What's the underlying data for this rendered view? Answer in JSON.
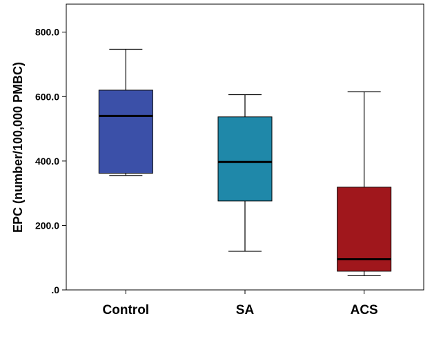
{
  "chart_data": {
    "type": "boxplot",
    "title": "",
    "xlabel": "",
    "ylabel": "EPC (number/100,000 PMBC)",
    "ylim": [
      0,
      887
    ],
    "yticks": [
      0,
      200,
      400,
      600,
      800
    ],
    "ytick_labels": [
      ".0",
      "200.0",
      "400.0",
      "600.0",
      "800.0"
    ],
    "grid": false,
    "legend": "none",
    "categories": [
      "Control",
      "SA",
      "ACS"
    ],
    "boxes": [
      {
        "name": "Control",
        "whisker_low": 355,
        "q1": 362,
        "median": 540,
        "q3": 620,
        "whisker_high": 747,
        "color": "#3b50a8"
      },
      {
        "name": "SA",
        "whisker_low": 120,
        "q1": 276,
        "median": 397,
        "q3": 537,
        "whisker_high": 606,
        "color": "#1f88a9"
      },
      {
        "name": "ACS",
        "whisker_low": 44,
        "q1": 58,
        "median": 95,
        "q3": 319,
        "whisker_high": 615,
        "color": "#a0171c"
      }
    ]
  }
}
